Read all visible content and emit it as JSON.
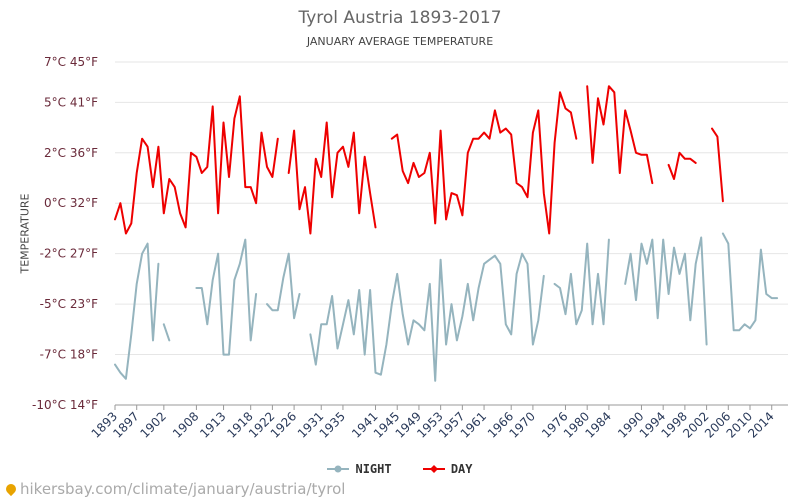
{
  "page": {
    "title": "Tyrol Austria 1893-2017",
    "subtitle": "JANUARY AVERAGE TEMPERATURE",
    "footer": "hikersbay.com/climate/january/austria/tyrol"
  },
  "chart_data": {
    "type": "line",
    "title": "Tyrol Austria 1893-2017",
    "subtitle": "JANUARY AVERAGE TEMPERATURE",
    "ylabel": "TEMPERATURE",
    "xlabel": "",
    "ylim": [
      -10,
      7
    ],
    "xlim": [
      1893,
      2017
    ],
    "y_ticks": [
      {
        "value": 7,
        "label": "7°C 45°F"
      },
      {
        "value": 5,
        "label": "5°C 41°F"
      },
      {
        "value": 2.5,
        "label": "2°C 36°F"
      },
      {
        "value": 0,
        "label": "0°C 32°F"
      },
      {
        "value": -2.5,
        "label": "-2°C 27°F"
      },
      {
        "value": -5,
        "label": "-5°C 23°F"
      },
      {
        "value": -7.5,
        "label": "-7°C 18°F"
      },
      {
        "value": -10,
        "label": "-10°C 14°F"
      }
    ],
    "x_ticks": [
      1893,
      1897,
      1902,
      1908,
      1913,
      1918,
      1922,
      1926,
      1931,
      1935,
      1941,
      1945,
      1949,
      1953,
      1957,
      1961,
      1966,
      1970,
      1976,
      1980,
      1984,
      1990,
      1994,
      1998,
      2002,
      2006,
      2010,
      2014
    ],
    "grid": true,
    "legend_position": "bottom",
    "series": [
      {
        "name": "NIGHT",
        "color": "#95b4be",
        "points": [
          [
            1893,
            -8.0
          ],
          [
            1894,
            -8.4
          ],
          [
            1895,
            -8.7
          ],
          [
            1896,
            -6.5
          ],
          [
            1897,
            -4.0
          ],
          [
            1898,
            -2.5
          ],
          [
            1899,
            -2.0
          ],
          [
            1900,
            -6.8
          ],
          [
            1901,
            -3.0
          ],
          [
            null,
            null
          ],
          [
            1902,
            -6.0
          ],
          [
            1903,
            -6.8
          ],
          [
            null,
            null
          ],
          [
            1908,
            -4.2
          ],
          [
            1909,
            -4.2
          ],
          [
            1910,
            -6.0
          ],
          [
            1911,
            -3.8
          ],
          [
            1912,
            -2.5
          ],
          [
            1913,
            -7.5
          ],
          [
            1914,
            -7.5
          ],
          [
            1915,
            -3.8
          ],
          [
            1916,
            -3.0
          ],
          [
            1917,
            -1.8
          ],
          [
            1918,
            -6.8
          ],
          [
            1919,
            -4.5
          ],
          [
            null,
            null
          ],
          [
            1921,
            -5.0
          ],
          [
            1922,
            -5.3
          ],
          [
            1923,
            -5.3
          ],
          [
            1924,
            -3.7
          ],
          [
            1925,
            -2.5
          ],
          [
            1926,
            -5.7
          ],
          [
            1927,
            -4.5
          ],
          [
            null,
            null
          ],
          [
            1929,
            -6.5
          ],
          [
            1930,
            -8.0
          ],
          [
            1931,
            -6.0
          ],
          [
            1932,
            -6.0
          ],
          [
            1933,
            -4.6
          ],
          [
            1934,
            -7.2
          ],
          [
            1935,
            -6.0
          ],
          [
            1936,
            -4.8
          ],
          [
            1937,
            -6.5
          ],
          [
            1938,
            -4.3
          ],
          [
            1939,
            -7.5
          ],
          [
            1940,
            -4.3
          ],
          [
            1941,
            -8.4
          ],
          [
            1942,
            -8.5
          ],
          [
            1943,
            -7.0
          ],
          [
            1944,
            -5.0
          ],
          [
            1945,
            -3.5
          ],
          [
            1946,
            -5.5
          ],
          [
            1947,
            -7.0
          ],
          [
            1948,
            -5.8
          ],
          [
            1949,
            -6.0
          ],
          [
            1950,
            -6.3
          ],
          [
            1951,
            -4.0
          ],
          [
            1952,
            -8.8
          ],
          [
            1953,
            -2.8
          ],
          [
            1954,
            -7.0
          ],
          [
            1955,
            -5.0
          ],
          [
            1956,
            -6.8
          ],
          [
            1957,
            -5.6
          ],
          [
            1958,
            -4.0
          ],
          [
            1959,
            -5.8
          ],
          [
            1960,
            -4.2
          ],
          [
            1961,
            -3.0
          ],
          [
            1962,
            -2.8
          ],
          [
            1963,
            -2.6
          ],
          [
            1964,
            -3.0
          ],
          [
            1965,
            -6.0
          ],
          [
            1966,
            -6.5
          ],
          [
            1967,
            -3.5
          ],
          [
            1968,
            -2.5
          ],
          [
            1969,
            -3.0
          ],
          [
            1970,
            -7.0
          ],
          [
            1971,
            -5.8
          ],
          [
            1972,
            -3.6
          ],
          [
            null,
            null
          ],
          [
            1974,
            -4.0
          ],
          [
            1975,
            -4.2
          ],
          [
            1976,
            -5.5
          ],
          [
            1977,
            -3.5
          ],
          [
            1978,
            -6.0
          ],
          [
            1979,
            -5.3
          ],
          [
            1980,
            -2.0
          ],
          [
            1981,
            -6.0
          ],
          [
            1982,
            -3.5
          ],
          [
            1983,
            -6.0
          ],
          [
            1984,
            -1.8
          ],
          [
            null,
            null
          ],
          [
            1987,
            -4.0
          ],
          [
            1988,
            -2.5
          ],
          [
            1989,
            -4.8
          ],
          [
            1990,
            -2.0
          ],
          [
            1991,
            -3.0
          ],
          [
            1992,
            -1.8
          ],
          [
            1993,
            -5.7
          ],
          [
            1994,
            -1.8
          ],
          [
            1995,
            -4.5
          ],
          [
            1996,
            -2.2
          ],
          [
            1997,
            -3.5
          ],
          [
            1998,
            -2.5
          ],
          [
            1999,
            -5.8
          ],
          [
            2000,
            -3.0
          ],
          [
            2001,
            -1.7
          ],
          [
            2002,
            -7.0
          ],
          [
            null,
            null
          ],
          [
            2005,
            -1.5
          ],
          [
            2006,
            -2.0
          ],
          [
            2007,
            -6.3
          ],
          [
            2008,
            -6.3
          ],
          [
            2009,
            -6.0
          ],
          [
            2010,
            -6.2
          ],
          [
            2011,
            -5.8
          ],
          [
            2012,
            -2.3
          ],
          [
            2013,
            -4.5
          ],
          [
            2014,
            -4.7
          ],
          [
            2015,
            -4.7
          ]
        ]
      },
      {
        "name": "DAY",
        "color": "#ee0000",
        "points": [
          [
            1893,
            -0.8
          ],
          [
            1894,
            0.0
          ],
          [
            1895,
            -1.5
          ],
          [
            1896,
            -1.0
          ],
          [
            1897,
            1.5
          ],
          [
            1898,
            3.2
          ],
          [
            1899,
            2.8
          ],
          [
            1900,
            0.8
          ],
          [
            1901,
            2.8
          ],
          [
            1902,
            -0.5
          ],
          [
            1903,
            1.2
          ],
          [
            1904,
            0.8
          ],
          [
            1905,
            -0.5
          ],
          [
            1906,
            -1.2
          ],
          [
            1907,
            2.5
          ],
          [
            1908,
            2.3
          ],
          [
            1909,
            1.5
          ],
          [
            1910,
            1.8
          ],
          [
            1911,
            4.8
          ],
          [
            1912,
            -0.5
          ],
          [
            1913,
            4.0
          ],
          [
            1914,
            1.3
          ],
          [
            1915,
            4.2
          ],
          [
            1916,
            5.3
          ],
          [
            1917,
            0.8
          ],
          [
            1918,
            0.8
          ],
          [
            1919,
            0.0
          ],
          [
            1920,
            3.5
          ],
          [
            1921,
            1.8
          ],
          [
            1922,
            1.3
          ],
          [
            1923,
            3.2
          ],
          [
            null,
            null
          ],
          [
            1925,
            1.5
          ],
          [
            1926,
            3.6
          ],
          [
            1927,
            -0.3
          ],
          [
            1928,
            0.8
          ],
          [
            1929,
            -1.5
          ],
          [
            1930,
            2.2
          ],
          [
            1931,
            1.3
          ],
          [
            1932,
            4.0
          ],
          [
            1933,
            0.3
          ],
          [
            1934,
            2.5
          ],
          [
            1935,
            2.8
          ],
          [
            1936,
            1.8
          ],
          [
            1937,
            3.5
          ],
          [
            1938,
            -0.5
          ],
          [
            1939,
            2.3
          ],
          [
            1940,
            0.5
          ],
          [
            1941,
            -1.2
          ],
          [
            null,
            null
          ],
          [
            1944,
            3.2
          ],
          [
            1945,
            3.4
          ],
          [
            1946,
            1.6
          ],
          [
            1947,
            1.0
          ],
          [
            1948,
            2.0
          ],
          [
            1949,
            1.3
          ],
          [
            1950,
            1.5
          ],
          [
            1951,
            2.5
          ],
          [
            1952,
            -1.0
          ],
          [
            1953,
            3.6
          ],
          [
            1954,
            -0.8
          ],
          [
            1955,
            0.5
          ],
          [
            1956,
            0.4
          ],
          [
            1957,
            -0.6
          ],
          [
            1958,
            2.5
          ],
          [
            1959,
            3.2
          ],
          [
            1960,
            3.2
          ],
          [
            1961,
            3.5
          ],
          [
            1962,
            3.2
          ],
          [
            1963,
            4.6
          ],
          [
            1964,
            3.5
          ],
          [
            1965,
            3.7
          ],
          [
            1966,
            3.4
          ],
          [
            1967,
            1.0
          ],
          [
            1968,
            0.8
          ],
          [
            1969,
            0.3
          ],
          [
            1970,
            3.5
          ],
          [
            1971,
            4.6
          ],
          [
            1972,
            0.5
          ],
          [
            1973,
            -1.5
          ],
          [
            1974,
            3.0
          ],
          [
            1975,
            5.5
          ],
          [
            1976,
            4.7
          ],
          [
            1977,
            4.5
          ],
          [
            1978,
            3.2
          ],
          [
            null,
            null
          ],
          [
            1980,
            5.8
          ],
          [
            1981,
            2.0
          ],
          [
            1982,
            5.2
          ],
          [
            1983,
            3.9
          ],
          [
            1984,
            5.8
          ],
          [
            1985,
            5.5
          ],
          [
            1986,
            1.5
          ],
          [
            1987,
            4.6
          ],
          [
            1988,
            3.6
          ],
          [
            1989,
            2.5
          ],
          [
            1990,
            2.4
          ],
          [
            1991,
            2.4
          ],
          [
            1992,
            1.0
          ],
          [
            null,
            null
          ],
          [
            1995,
            1.9
          ],
          [
            1996,
            1.2
          ],
          [
            1997,
            2.5
          ],
          [
            1998,
            2.2
          ],
          [
            1999,
            2.2
          ],
          [
            2000,
            2.0
          ],
          [
            null,
            null
          ],
          [
            2003,
            3.7
          ],
          [
            2004,
            3.3
          ],
          [
            2005,
            0.1
          ]
        ]
      }
    ]
  },
  "legend": {
    "night_label": "NIGHT",
    "day_label": "DAY"
  }
}
